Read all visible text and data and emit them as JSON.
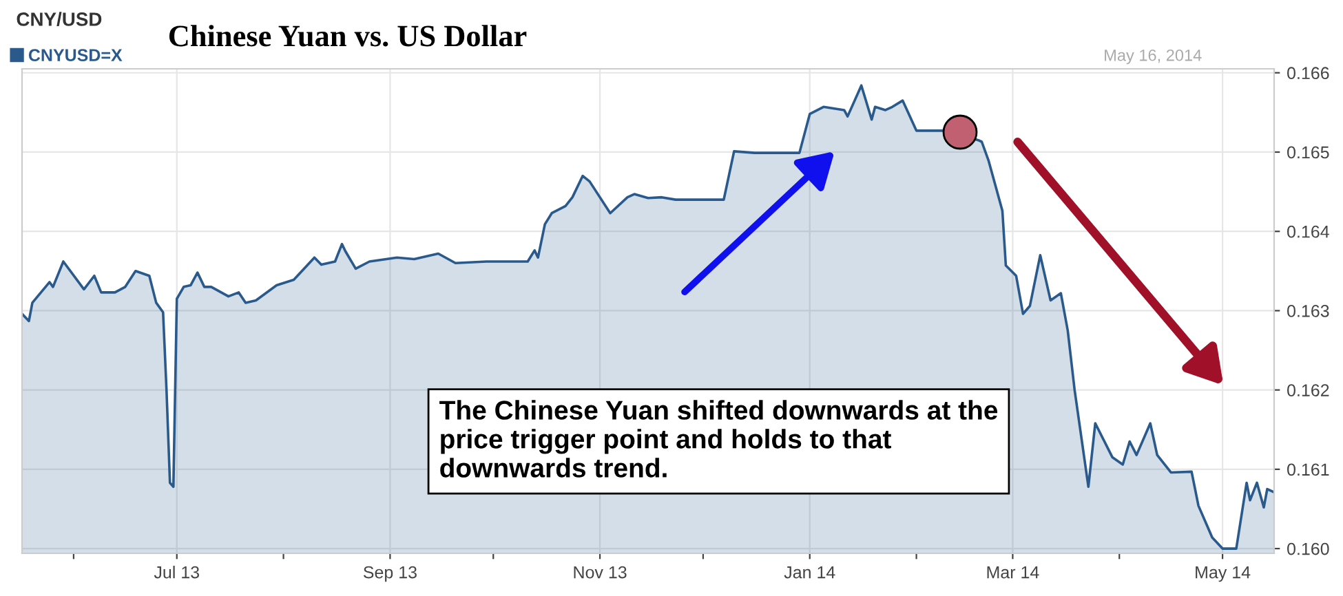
{
  "chart_data": {
    "type": "area",
    "title": "Chinese Yuan vs. US Dollar",
    "legend": "top left",
    "grid": true,
    "marker": "none",
    "xlim": [
      "2013-05-17",
      "2014-05-16"
    ],
    "xticks": [
      {
        "value": "2013-06-01",
        "label": null
      },
      {
        "value": "2013-07-01",
        "label": "Jul 13"
      },
      {
        "value": "2013-08-01",
        "label": null
      },
      {
        "value": "2013-09-01",
        "label": "Sep 13"
      },
      {
        "value": "2013-10-01",
        "label": null
      },
      {
        "value": "2013-11-01",
        "label": "Nov 13"
      },
      {
        "value": "2013-12-01",
        "label": null
      },
      {
        "value": "2014-01-01",
        "label": "Jan 14"
      },
      {
        "value": "2014-02-01",
        "label": null
      },
      {
        "value": "2014-03-01",
        "label": "Mar 14"
      },
      {
        "value": "2014-04-01",
        "label": null
      },
      {
        "value": "2014-05-01",
        "label": "May 14"
      }
    ],
    "ylim": [
      0.15994,
      0.16605
    ],
    "yticks": [
      {
        "value": 0.16,
        "label": "0.160"
      },
      {
        "value": 0.161,
        "label": "0.161"
      },
      {
        "value": 0.162,
        "label": "0.162"
      },
      {
        "value": 0.163,
        "label": "0.163"
      },
      {
        "value": 0.164,
        "label": "0.164"
      },
      {
        "value": 0.165,
        "label": "0.165"
      },
      {
        "value": 0.166,
        "label": "0.166"
      }
    ],
    "annotations": [
      "CNY/USD",
      "May 16, 2014",
      "The Chinese Yuan shifted downwards at the price trigger point and holds to that downwards trend."
    ],
    "series": [
      {
        "name": "CNYUSD=X",
        "color": "#2a5a8c",
        "x": [
          "2013-05-17",
          "2013-05-19",
          "2013-05-20",
          "2013-05-25",
          "2013-05-26",
          "2013-05-29",
          "2013-06-04",
          "2013-06-07",
          "2013-06-09",
          "2013-06-13",
          "2013-06-16",
          "2013-06-19",
          "2013-06-23",
          "2013-06-25",
          "2013-06-27",
          "2013-06-28",
          "2013-06-29",
          "2013-06-30",
          "2013-07-01",
          "2013-07-03",
          "2013-07-05",
          "2013-07-07",
          "2013-07-09",
          "2013-07-11",
          "2013-07-16",
          "2013-07-19",
          "2013-07-21",
          "2013-07-24",
          "2013-07-30",
          "2013-08-04",
          "2013-08-10",
          "2013-08-12",
          "2013-08-16",
          "2013-08-18",
          "2013-08-19",
          "2013-08-22",
          "2013-08-26",
          "2013-09-03",
          "2013-09-08",
          "2013-09-15",
          "2013-09-20",
          "2013-09-29",
          "2013-10-11",
          "2013-10-13",
          "2013-10-14",
          "2013-10-16",
          "2013-10-18",
          "2013-10-22",
          "2013-10-24",
          "2013-10-27",
          "2013-10-29",
          "2013-11-04",
          "2013-11-09",
          "2013-11-11",
          "2013-11-15",
          "2013-11-19",
          "2013-11-23",
          "2013-12-07",
          "2013-12-10",
          "2013-12-16",
          "2013-12-29",
          "2014-01-01",
          "2014-01-05",
          "2014-01-11",
          "2014-01-12",
          "2014-01-16",
          "2014-01-19",
          "2014-01-20",
          "2014-01-23",
          "2014-01-25",
          "2014-01-28",
          "2014-02-01",
          "2014-02-09",
          "2014-02-13",
          "2014-02-19",
          "2014-02-20",
          "2014-02-22",
          "2014-02-26",
          "2014-02-27",
          "2014-03-02",
          "2014-03-04",
          "2014-03-06",
          "2014-03-09",
          "2014-03-12",
          "2014-03-15",
          "2014-03-17",
          "2014-03-19",
          "2014-03-23",
          "2014-03-25",
          "2014-03-30",
          "2014-04-02",
          "2014-04-04",
          "2014-04-06",
          "2014-04-10",
          "2014-04-12",
          "2014-04-16",
          "2014-04-22",
          "2014-04-24",
          "2014-04-28",
          "2014-05-01",
          "2014-05-05",
          "2014-05-08",
          "2014-05-09",
          "2014-05-11",
          "2014-05-13",
          "2014-05-14",
          "2014-05-16"
        ],
        "values": [
          0.16296,
          0.16287,
          0.1631,
          0.16336,
          0.1633,
          0.16362,
          0.16327,
          0.16344,
          0.16323,
          0.16323,
          0.1633,
          0.1635,
          0.16344,
          0.1631,
          0.16298,
          0.162,
          0.16083,
          0.16078,
          0.16315,
          0.1633,
          0.16332,
          0.16348,
          0.1633,
          0.1633,
          0.16318,
          0.16323,
          0.1631,
          0.16313,
          0.16332,
          0.16339,
          0.16367,
          0.16358,
          0.16362,
          0.16384,
          0.16375,
          0.16353,
          0.16362,
          0.16367,
          0.16365,
          0.16372,
          0.1636,
          0.16362,
          0.16362,
          0.16376,
          0.16367,
          0.16409,
          0.16423,
          0.16432,
          0.16443,
          0.1647,
          0.16463,
          0.16423,
          0.16443,
          0.16447,
          0.16442,
          0.16443,
          0.1644,
          0.1644,
          0.16501,
          0.16499,
          0.16499,
          0.16548,
          0.16557,
          0.16553,
          0.16545,
          0.16584,
          0.16541,
          0.16557,
          0.16553,
          0.16557,
          0.16565,
          0.16527,
          0.16527,
          0.16523,
          0.16515,
          0.16513,
          0.16489,
          0.16426,
          0.16357,
          0.16344,
          0.16296,
          0.16306,
          0.1637,
          0.16313,
          0.16322,
          0.16275,
          0.162,
          0.16078,
          0.16158,
          0.16115,
          0.16106,
          0.16135,
          0.16118,
          0.16158,
          0.16118,
          0.16096,
          0.16097,
          0.16054,
          0.16014,
          0.16,
          0.16,
          0.16083,
          0.16061,
          0.16083,
          0.16052,
          0.16075,
          0.16071
        ]
      }
    ]
  }
}
